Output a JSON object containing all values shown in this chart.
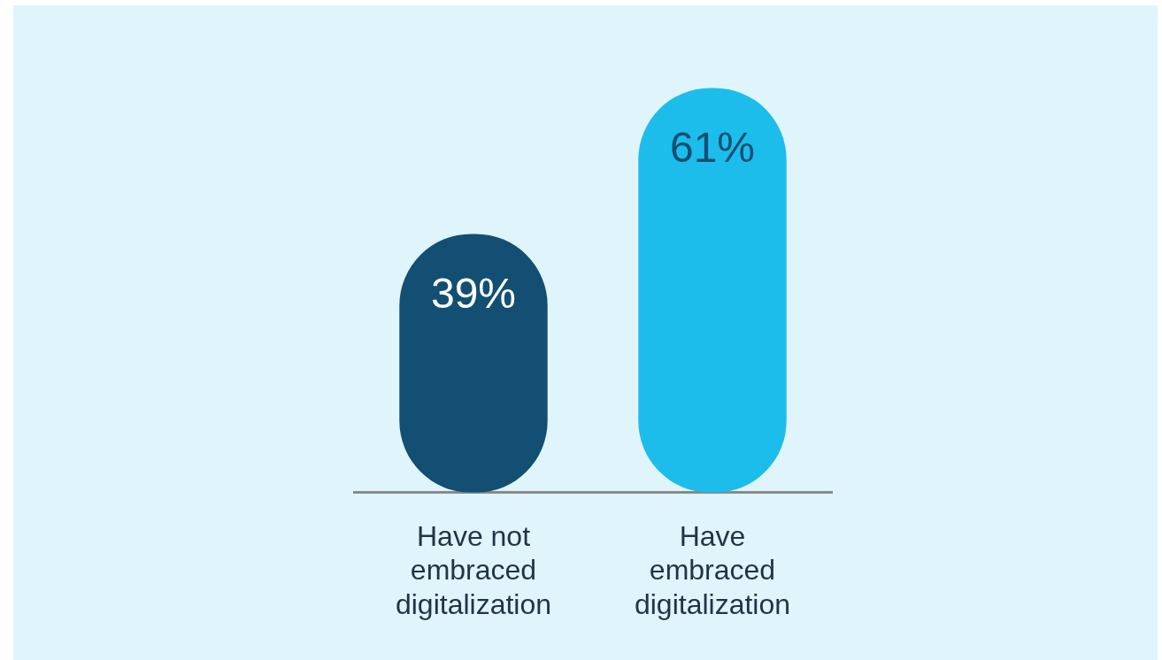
{
  "chart_data": {
    "type": "bar",
    "categories": [
      "Have not embraced digitalization",
      "Have embraced digitalization"
    ],
    "values": [
      39,
      61
    ],
    "colors": [
      "#124f72",
      "#1dbdeb"
    ],
    "value_labels": [
      "39%",
      "61%"
    ],
    "tick_labels": "x",
    "grid": false,
    "legend": false
  }
}
